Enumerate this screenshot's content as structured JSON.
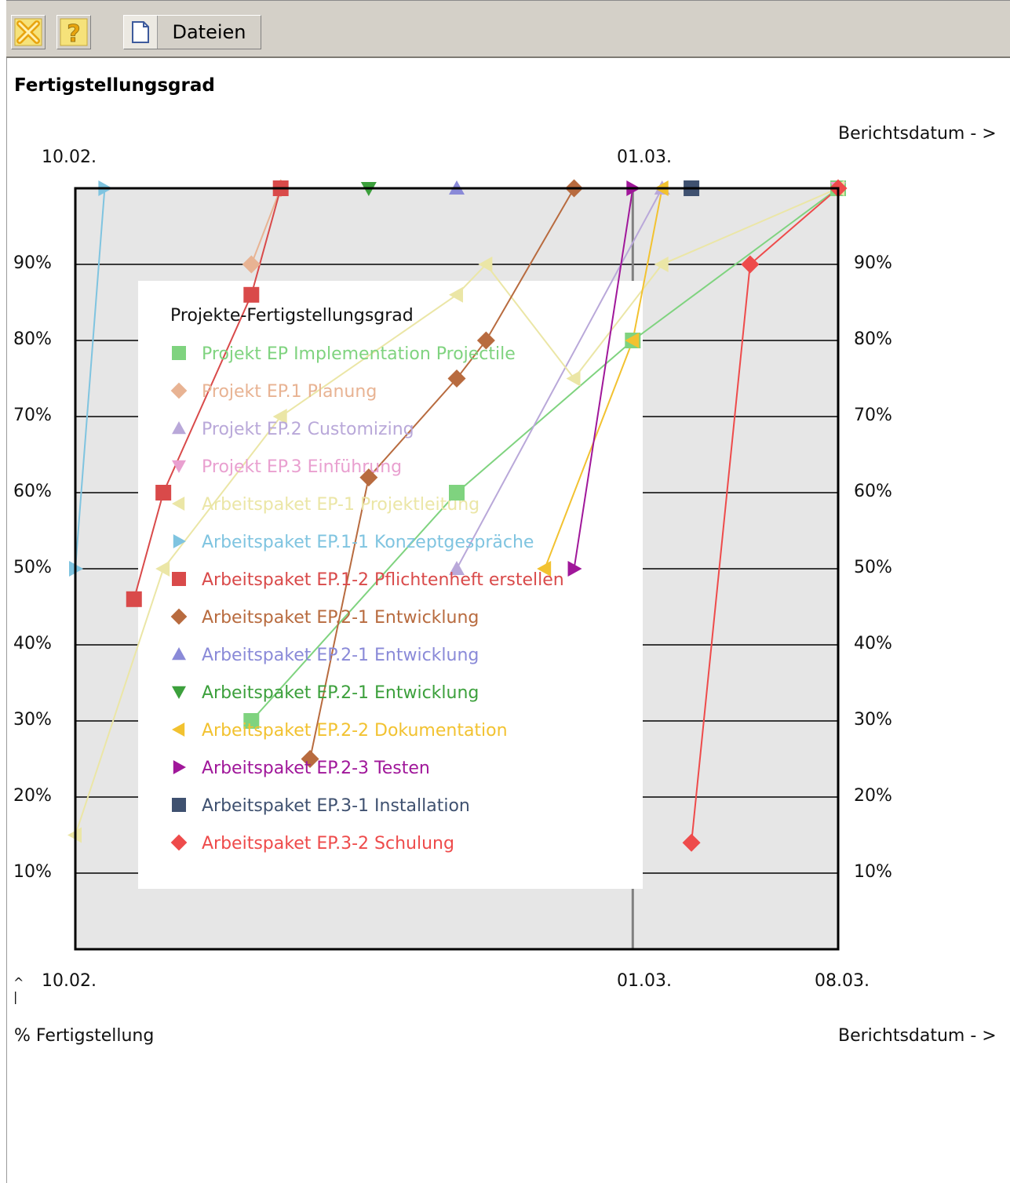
{
  "toolbar": {
    "close_icon": "close-icon",
    "help_icon": "help-icon",
    "files_icon": "document-icon",
    "files_label": "Dateien"
  },
  "page_title": "Fertigstellungsgrad",
  "colors": {
    "plot_bg": "#e6e6e6",
    "legend_bg": "#ffffff",
    "gridline": "#000000",
    "marker_line": "#808080"
  },
  "chart_data": {
    "type": "line",
    "title": "",
    "xlabel_top": "Berichtsdatum - >",
    "xlabel_bottom": "Berichtsdatum - >",
    "ylabel": "% Fertigstellung",
    "ylabel_arrow": "^\n|",
    "x_ticks_top": [
      "10.02.",
      "01.03."
    ],
    "x_ticks_bottom": [
      "10.02.",
      "01.03.",
      "08.03."
    ],
    "y_ticks": [
      "10%",
      "20%",
      "30%",
      "40%",
      "50%",
      "60%",
      "70%",
      "80%",
      "90%"
    ],
    "y_tick_values": [
      10,
      20,
      30,
      40,
      50,
      60,
      70,
      80,
      90
    ],
    "xlim": [
      "2009-02-10",
      "2009-03-08"
    ],
    "ylim": [
      0,
      100
    ],
    "x_marker_date": "2009-03-01",
    "grid": true,
    "legend": {
      "title": "Projekte-Fertigstellungsgrad",
      "placement": "inside-center"
    },
    "series": [
      {
        "name": "Projekt EP Implementation Projectile",
        "color": "#7fd37f",
        "marker": "square",
        "points": [
          [
            "2009-02-16",
            30
          ],
          [
            "2009-02-23",
            60
          ],
          [
            "2009-03-01",
            80
          ],
          [
            "2009-03-08",
            100
          ]
        ]
      },
      {
        "name": "Projekt EP.1 Planung",
        "color": "#e8b393",
        "marker": "diamond",
        "points": [
          [
            "2009-02-16",
            90
          ],
          [
            "2009-02-17",
            100
          ]
        ]
      },
      {
        "name": "Projekt EP.2 Customizing",
        "color": "#b9a8d9",
        "marker": "triangle-up",
        "points": [
          [
            "2009-02-23",
            50
          ],
          [
            "2009-03-02",
            100
          ]
        ]
      },
      {
        "name": "Projekt EP.3 Einführung",
        "color": "#e9a0d0",
        "marker": "triangle-down",
        "points": [
          [
            "2009-03-08",
            100
          ]
        ]
      },
      {
        "name": "Arbeitspaket EP-1 Projektleitung",
        "color": "#ebe6a6",
        "marker": "triangle-left",
        "points": [
          [
            "2009-02-10",
            15
          ],
          [
            "2009-02-13",
            50
          ],
          [
            "2009-02-17",
            70
          ],
          [
            "2009-02-23",
            86
          ],
          [
            "2009-02-24",
            90
          ],
          [
            "2009-02-27",
            75
          ],
          [
            "2009-03-02",
            90
          ],
          [
            "2009-03-08",
            100
          ]
        ]
      },
      {
        "name": "Arbeitspaket EP.1-1 Konzeptgespräche",
        "color": "#7fc4e0",
        "marker": "triangle-right",
        "points": [
          [
            "2009-02-10",
            50
          ],
          [
            "2009-02-11",
            100
          ]
        ]
      },
      {
        "name": "Arbeitspaket EP.1-2 Pflichtenheft erstellen",
        "color": "#d94a4a",
        "marker": "square",
        "points": [
          [
            "2009-02-12",
            46
          ],
          [
            "2009-02-13",
            60
          ],
          [
            "2009-02-16",
            86
          ],
          [
            "2009-02-17",
            100
          ]
        ]
      },
      {
        "name": "Arbeitspaket EP.2-1 Entwicklung",
        "color": "#b86b3f",
        "marker": "diamond",
        "points": [
          [
            "2009-02-18",
            25
          ],
          [
            "2009-02-20",
            62
          ],
          [
            "2009-02-23",
            75
          ],
          [
            "2009-02-24",
            80
          ],
          [
            "2009-02-27",
            100
          ]
        ]
      },
      {
        "name": "Arbeitspaket EP.2-1 Entwicklung",
        "color": "#8a8ad8",
        "marker": "triangle-up",
        "points": [
          [
            "2009-02-23",
            100
          ]
        ]
      },
      {
        "name": "Arbeitspaket EP.2-1 Entwicklung",
        "color": "#3ca03c",
        "marker": "triangle-down",
        "points": [
          [
            "2009-02-20",
            100
          ]
        ]
      },
      {
        "name": "Arbeitspaket EP.2-2 Dokumentation",
        "color": "#f2c230",
        "marker": "triangle-left",
        "points": [
          [
            "2009-02-26",
            50
          ],
          [
            "2009-03-01",
            80
          ],
          [
            "2009-03-02",
            100
          ]
        ]
      },
      {
        "name": "Arbeitspaket EP.2-3 Testen",
        "color": "#a0179a",
        "marker": "triangle-right",
        "points": [
          [
            "2009-02-27",
            50
          ],
          [
            "2009-03-01",
            100
          ]
        ]
      },
      {
        "name": "Arbeitspaket EP.3-1 Installation",
        "color": "#3f5170",
        "marker": "square",
        "points": [
          [
            "2009-03-03",
            100
          ]
        ]
      },
      {
        "name": "Arbeitspaket EP.3-2 Schulung",
        "color": "#ee4b4b",
        "marker": "diamond",
        "points": [
          [
            "2009-03-03",
            14
          ],
          [
            "2009-03-05",
            90
          ],
          [
            "2009-03-08",
            100
          ]
        ]
      }
    ]
  }
}
